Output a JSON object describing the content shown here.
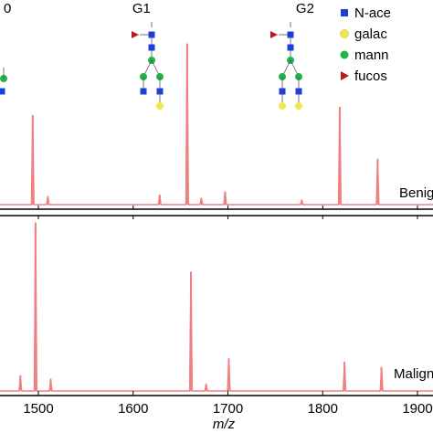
{
  "chart_data": [
    {
      "type": "line",
      "panel": "top",
      "label": "Benign",
      "series": [
        {
          "values": [
            [
              1440,
              0.02
            ],
            [
              1494,
              0.56
            ],
            [
              1510,
              0.06
            ],
            [
              1628,
              0.07
            ],
            [
              1657,
              1.0
            ],
            [
              1672,
              0.05
            ],
            [
              1697,
              0.09
            ],
            [
              1778,
              0.04
            ],
            [
              1818,
              0.61
            ],
            [
              1858,
              0.29
            ]
          ]
        }
      ],
      "color": "#f08080"
    },
    {
      "type": "line",
      "panel": "bottom",
      "label": "Malignant",
      "series": [
        {
          "values": [
            [
              1440,
              0.02
            ],
            [
              1481,
              0.1
            ],
            [
              1497,
              1.0
            ],
            [
              1513,
              0.08
            ],
            [
              1661,
              0.71
            ],
            [
              1677,
              0.05
            ],
            [
              1701,
              0.2
            ],
            [
              1823,
              0.18
            ],
            [
              1862,
              0.15
            ]
          ]
        }
      ],
      "color": "#f08080"
    }
  ],
  "x_axis": {
    "label": "m/z",
    "ticks": [
      "1500",
      "1600",
      "1700",
      "1800",
      "1900"
    ],
    "tick_values": [
      1500,
      1600,
      1700,
      1800,
      1900
    ],
    "range": [
      1418,
      1934
    ]
  },
  "glycans": [
    {
      "label": "0",
      "mz": 1494
    },
    {
      "label": "G1",
      "mz": 1657
    },
    {
      "label": "G2",
      "mz": 1818
    }
  ],
  "legend": [
    {
      "label": "N-ace",
      "shape": "square",
      "color": "#1c3fd6"
    },
    {
      "label": "galac",
      "shape": "circle",
      "color": "#f2e84a"
    },
    {
      "label": "mann",
      "shape": "circle",
      "color": "#22b24a"
    },
    {
      "label": "fucos",
      "shape": "triangle",
      "color": "#c0161e"
    }
  ],
  "colors": {
    "spectrum": "#f08080",
    "axis": "#000000"
  }
}
